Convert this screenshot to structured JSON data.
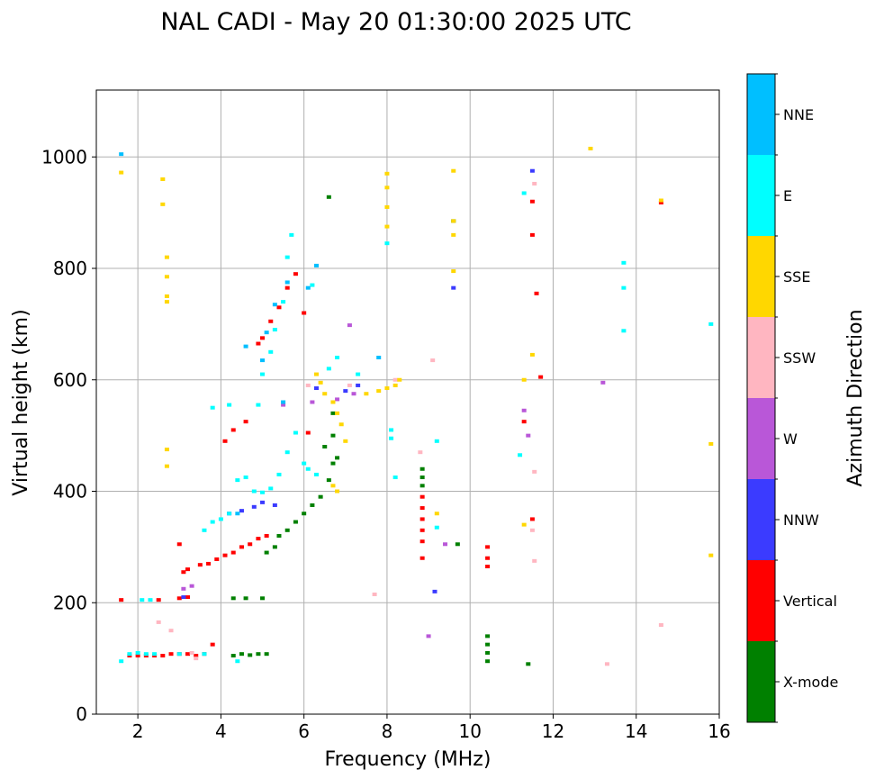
{
  "chart_data": {
    "type": "scatter",
    "title": "NAL CADI - May 20 01:30:00 2025 UTC",
    "xlabel": "Frequency (MHz)",
    "ylabel": "Virtual height (km)",
    "xlim": [
      1,
      16
    ],
    "ylim": [
      0,
      1120
    ],
    "xticks": [
      2,
      4,
      6,
      8,
      10,
      12,
      14,
      16
    ],
    "yticks": [
      0,
      200,
      400,
      600,
      800,
      1000
    ],
    "grid": true,
    "colorbar": {
      "label": "Azimuth Direction",
      "categories": [
        {
          "name": "X-mode",
          "color": "#008000"
        },
        {
          "name": "Vertical",
          "color": "#ff0000"
        },
        {
          "name": "NNW",
          "color": "#3b3bff"
        },
        {
          "name": "W",
          "color": "#b957d8"
        },
        {
          "name": "SSW",
          "color": "#ffb6c1"
        },
        {
          "name": "SSE",
          "color": "#ffd700"
        },
        {
          "name": "E",
          "color": "#00ffff"
        },
        {
          "name": "NNE",
          "color": "#00bfff"
        }
      ]
    },
    "series": [
      {
        "name": "X-mode",
        "points": [
          [
            4.3,
            105
          ],
          [
            4.5,
            108
          ],
          [
            4.7,
            106
          ],
          [
            4.9,
            108
          ],
          [
            5.1,
            108
          ],
          [
            4.3,
            208
          ],
          [
            4.6,
            208
          ],
          [
            5.0,
            208
          ],
          [
            5.1,
            290
          ],
          [
            5.3,
            300
          ],
          [
            5.4,
            320
          ],
          [
            5.6,
            330
          ],
          [
            5.8,
            345
          ],
          [
            6.0,
            360
          ],
          [
            6.2,
            375
          ],
          [
            6.4,
            390
          ],
          [
            6.6,
            420
          ],
          [
            6.7,
            450
          ],
          [
            6.7,
            500
          ],
          [
            6.8,
            460
          ],
          [
            6.7,
            540
          ],
          [
            6.5,
            480
          ],
          [
            6.6,
            928
          ],
          [
            9.6,
            885
          ],
          [
            9.7,
            305
          ],
          [
            11.4,
            90
          ],
          [
            8.85,
            440
          ],
          [
            8.85,
            425
          ],
          [
            8.85,
            410
          ],
          [
            10.42,
            140
          ],
          [
            10.42,
            125
          ],
          [
            10.42,
            110
          ],
          [
            10.42,
            95
          ]
        ]
      },
      {
        "name": "Vertical",
        "points": [
          [
            1.6,
            205
          ],
          [
            1.8,
            105
          ],
          [
            2.0,
            105
          ],
          [
            2.2,
            105
          ],
          [
            2.4,
            105
          ],
          [
            2.6,
            105
          ],
          [
            2.8,
            108
          ],
          [
            3.0,
            108
          ],
          [
            3.2,
            108
          ],
          [
            3.4,
            105
          ],
          [
            3.6,
            108
          ],
          [
            3.8,
            125
          ],
          [
            3.0,
            208
          ],
          [
            3.2,
            210
          ],
          [
            2.5,
            205
          ],
          [
            3.1,
            255
          ],
          [
            3.2,
            260
          ],
          [
            3.5,
            268
          ],
          [
            3.7,
            270
          ],
          [
            3.9,
            278
          ],
          [
            4.1,
            285
          ],
          [
            4.3,
            290
          ],
          [
            4.5,
            300
          ],
          [
            4.7,
            305
          ],
          [
            4.9,
            315
          ],
          [
            5.1,
            320
          ],
          [
            3.0,
            305
          ],
          [
            4.1,
            490
          ],
          [
            4.3,
            510
          ],
          [
            4.6,
            525
          ],
          [
            5.0,
            675
          ],
          [
            5.2,
            705
          ],
          [
            5.4,
            730
          ],
          [
            5.6,
            765
          ],
          [
            5.8,
            790
          ],
          [
            4.9,
            665
          ],
          [
            6.0,
            720
          ],
          [
            6.1,
            505
          ],
          [
            8.85,
            390
          ],
          [
            8.85,
            370
          ],
          [
            8.85,
            350
          ],
          [
            8.85,
            330
          ],
          [
            8.85,
            310
          ],
          [
            8.85,
            280
          ],
          [
            10.42,
            300
          ],
          [
            10.42,
            280
          ],
          [
            10.42,
            265
          ],
          [
            11.5,
            350
          ],
          [
            11.3,
            525
          ],
          [
            11.5,
            920
          ],
          [
            11.5,
            860
          ],
          [
            11.6,
            755
          ],
          [
            11.7,
            605
          ],
          [
            14.6,
            918
          ]
        ]
      },
      {
        "name": "NNW",
        "points": [
          [
            3.1,
            210
          ],
          [
            4.2,
            360
          ],
          [
            4.5,
            365
          ],
          [
            4.8,
            372
          ],
          [
            5.0,
            380
          ],
          [
            5.3,
            375
          ],
          [
            6.3,
            585
          ],
          [
            7.0,
            580
          ],
          [
            7.3,
            590
          ],
          [
            9.6,
            765
          ],
          [
            9.15,
            220
          ],
          [
            11.5,
            975
          ]
        ]
      },
      {
        "name": "W",
        "points": [
          [
            3.1,
            225
          ],
          [
            3.3,
            230
          ],
          [
            5.5,
            555
          ],
          [
            6.2,
            560
          ],
          [
            6.8,
            565
          ],
          [
            7.2,
            575
          ],
          [
            9.4,
            305
          ],
          [
            11.3,
            545
          ],
          [
            11.4,
            500
          ],
          [
            13.2,
            595
          ],
          [
            9.0,
            140
          ],
          [
            7.1,
            698
          ]
        ]
      },
      {
        "name": "SSW",
        "points": [
          [
            2.5,
            165
          ],
          [
            2.8,
            150
          ],
          [
            3.3,
            110
          ],
          [
            3.4,
            100
          ],
          [
            6.1,
            590
          ],
          [
            7.1,
            590
          ],
          [
            8.2,
            600
          ],
          [
            8.8,
            470
          ],
          [
            9.1,
            635
          ],
          [
            7.7,
            215
          ],
          [
            11.5,
            330
          ],
          [
            11.55,
            275
          ],
          [
            11.55,
            435
          ],
          [
            13.3,
            90
          ],
          [
            14.6,
            160
          ],
          [
            11.55,
            952
          ]
        ]
      },
      {
        "name": "SSE",
        "points": [
          [
            1.6,
            972
          ],
          [
            2.6,
            960
          ],
          [
            2.6,
            915
          ],
          [
            2.7,
            820
          ],
          [
            2.7,
            785
          ],
          [
            2.7,
            750
          ],
          [
            2.7,
            740
          ],
          [
            2.7,
            475
          ],
          [
            2.7,
            445
          ],
          [
            6.3,
            610
          ],
          [
            6.4,
            595
          ],
          [
            6.5,
            575
          ],
          [
            6.7,
            560
          ],
          [
            6.8,
            540
          ],
          [
            6.9,
            520
          ],
          [
            7.0,
            490
          ],
          [
            6.8,
            400
          ],
          [
            6.7,
            410
          ],
          [
            7.5,
            575
          ],
          [
            7.8,
            580
          ],
          [
            8.0,
            585
          ],
          [
            8.2,
            590
          ],
          [
            8.3,
            600
          ],
          [
            8.0,
            970
          ],
          [
            8.0,
            945
          ],
          [
            8.0,
            910
          ],
          [
            8.0,
            875
          ],
          [
            9.6,
            975
          ],
          [
            9.6,
            885
          ],
          [
            9.6,
            860
          ],
          [
            9.6,
            795
          ],
          [
            9.2,
            360
          ],
          [
            11.3,
            600
          ],
          [
            11.5,
            645
          ],
          [
            12.9,
            1015
          ],
          [
            14.6,
            922
          ],
          [
            15.8,
            485
          ],
          [
            15.8,
            285
          ],
          [
            11.3,
            340
          ]
        ]
      },
      {
        "name": "E",
        "points": [
          [
            1.6,
            95
          ],
          [
            1.8,
            108
          ],
          [
            2.0,
            110
          ],
          [
            2.2,
            108
          ],
          [
            2.4,
            108
          ],
          [
            3.0,
            108
          ],
          [
            3.6,
            108
          ],
          [
            4.4,
            95
          ],
          [
            2.1,
            205
          ],
          [
            2.3,
            205
          ],
          [
            3.6,
            330
          ],
          [
            3.8,
            345
          ],
          [
            4.0,
            350
          ],
          [
            4.2,
            360
          ],
          [
            4.4,
            420
          ],
          [
            4.6,
            425
          ],
          [
            4.8,
            400
          ],
          [
            5.0,
            398
          ],
          [
            5.2,
            405
          ],
          [
            5.4,
            430
          ],
          [
            5.6,
            470
          ],
          [
            5.8,
            505
          ],
          [
            6.0,
            450
          ],
          [
            6.1,
            440
          ],
          [
            6.3,
            430
          ],
          [
            3.8,
            550
          ],
          [
            4.2,
            555
          ],
          [
            4.9,
            555
          ],
          [
            5.0,
            610
          ],
          [
            5.2,
            650
          ],
          [
            5.3,
            690
          ],
          [
            5.5,
            740
          ],
          [
            5.6,
            820
          ],
          [
            5.7,
            860
          ],
          [
            6.2,
            770
          ],
          [
            6.6,
            620
          ],
          [
            6.8,
            640
          ],
          [
            7.3,
            610
          ],
          [
            8.0,
            845
          ],
          [
            8.1,
            510
          ],
          [
            8.1,
            495
          ],
          [
            8.2,
            425
          ],
          [
            9.2,
            490
          ],
          [
            9.2,
            335
          ],
          [
            11.2,
            465
          ],
          [
            11.3,
            935
          ],
          [
            13.7,
            810
          ],
          [
            13.7,
            765
          ],
          [
            13.7,
            688
          ],
          [
            15.8,
            700
          ]
        ]
      },
      {
        "name": "NNE",
        "points": [
          [
            1.6,
            1005
          ],
          [
            4.6,
            660
          ],
          [
            5.0,
            635
          ],
          [
            5.1,
            685
          ],
          [
            5.3,
            735
          ],
          [
            5.6,
            775
          ],
          [
            6.3,
            805
          ],
          [
            6.1,
            765
          ],
          [
            7.8,
            640
          ],
          [
            4.4,
            360
          ],
          [
            5.5,
            560
          ]
        ]
      }
    ]
  }
}
